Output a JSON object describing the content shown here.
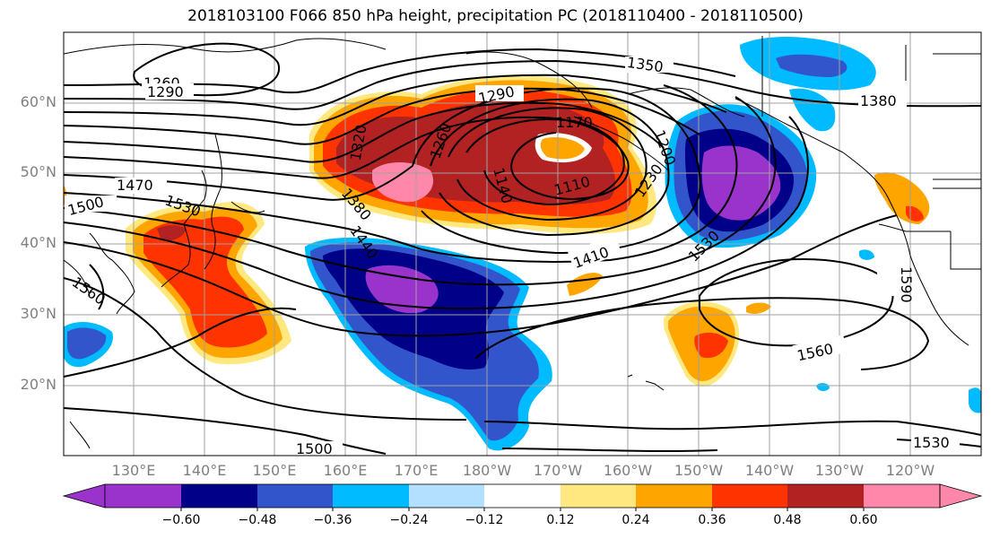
{
  "title": "2018103100 F066 850 hPa height, precipitation PC (2018110400 - 2018110500)",
  "lat_labels": [
    "60°N",
    "50°N",
    "40°N",
    "30°N",
    "20°N"
  ],
  "lon_labels": [
    "130°E",
    "140°E",
    "150°E",
    "160°E",
    "170°E",
    "180°W",
    "170°W",
    "160°W",
    "150°W",
    "140°W",
    "130°W",
    "120°W"
  ],
  "colorbar": {
    "ticks": [
      "−0.60",
      "−0.48",
      "−0.36",
      "−0.24",
      "−0.12",
      "0.12",
      "0.24",
      "0.36",
      "0.48",
      "0.60"
    ],
    "colors": [
      "#9933cc",
      "#000088",
      "#3355cc",
      "#00bbff",
      "#b3e0ff",
      "#ffffff",
      "#ffe880",
      "#ffa500",
      "#ff3300",
      "#b22222",
      "#ff88aa"
    ]
  },
  "contour_labels": [
    "1260",
    "1290",
    "1290",
    "1350",
    "1380",
    "1320",
    "1260",
    "1170",
    "1140",
    "1110",
    "1200",
    "1230",
    "1500",
    "1470",
    "1530",
    "1380",
    "1440",
    "1410",
    "1530",
    "1590",
    "1560",
    "1560",
    "1500",
    "1530"
  ],
  "icons": {
    "coastline": "coastline-lines",
    "contours": "height-contours"
  }
}
